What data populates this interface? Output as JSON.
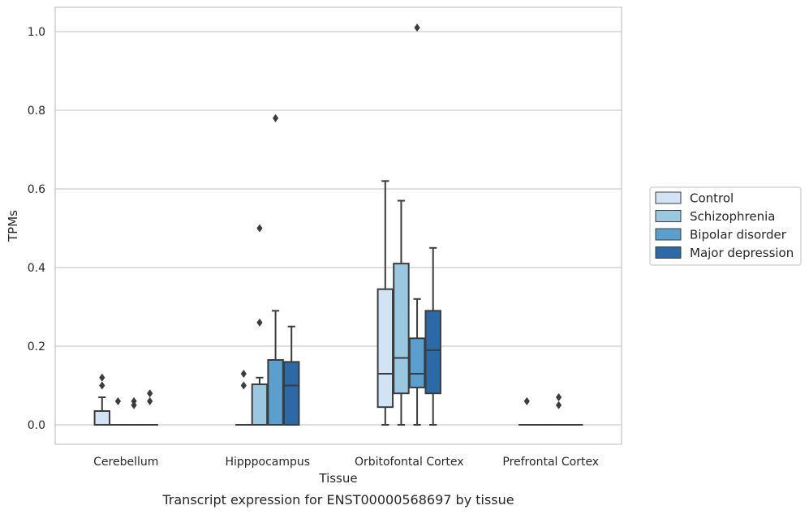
{
  "chart_data": {
    "type": "boxplot",
    "title": "",
    "caption": "Transcript expression for ENST00000568697 by tissue",
    "xlabel": "Tissue",
    "ylabel": "TPMs",
    "ylim": [
      -0.05,
      1.06
    ],
    "yticks": [
      0.0,
      0.2,
      0.4,
      0.6,
      0.8,
      1.0
    ],
    "yticklabels": [
      "0.0",
      "0.2",
      "0.4",
      "0.6",
      "0.8",
      "1.0"
    ],
    "grid": true,
    "legend": "right-outside",
    "categories": [
      "Cerebellum",
      "Hipppocampus",
      "Orbitofontal Cortex",
      "Prefrontal Cortex"
    ],
    "series": [
      {
        "name": "Control",
        "color": "#d2e3f3",
        "boxes": [
          {
            "whislo": 0.0,
            "q1": 0.0,
            "med": 0.0,
            "q3": 0.035,
            "whishi": 0.07,
            "fliers": [
              0.1,
              0.12
            ]
          },
          {
            "whislo": 0.0,
            "q1": 0.0,
            "med": 0.0,
            "q3": 0.0,
            "whishi": 0.0,
            "fliers": [
              0.1,
              0.13
            ]
          },
          {
            "whislo": 0.0,
            "q1": 0.045,
            "med": 0.13,
            "q3": 0.345,
            "whishi": 0.62,
            "fliers": []
          },
          {
            "whislo": 0.0,
            "q1": 0.0,
            "med": 0.0,
            "q3": 0.0,
            "whishi": 0.0,
            "fliers": [
              0.06
            ]
          }
        ]
      },
      {
        "name": "Schizophrenia",
        "color": "#9ac8e0",
        "boxes": [
          {
            "whislo": 0.0,
            "q1": 0.0,
            "med": 0.0,
            "q3": 0.0,
            "whishi": 0.0,
            "fliers": [
              0.06
            ]
          },
          {
            "whislo": 0.0,
            "q1": 0.0,
            "med": 0.0,
            "q3": 0.103,
            "whishi": 0.12,
            "fliers": [
              0.26,
              0.5
            ]
          },
          {
            "whislo": 0.0,
            "q1": 0.08,
            "med": 0.17,
            "q3": 0.41,
            "whishi": 0.57,
            "fliers": []
          },
          {
            "whislo": 0.0,
            "q1": 0.0,
            "med": 0.0,
            "q3": 0.0,
            "whishi": 0.0,
            "fliers": []
          }
        ]
      },
      {
        "name": "Bipolar disorder",
        "color": "#5a9fcd",
        "boxes": [
          {
            "whislo": 0.0,
            "q1": 0.0,
            "med": 0.0,
            "q3": 0.0,
            "whishi": 0.0,
            "fliers": [
              0.05,
              0.06
            ]
          },
          {
            "whislo": 0.0,
            "q1": 0.0,
            "med": 0.0,
            "q3": 0.165,
            "whishi": 0.29,
            "fliers": [
              0.78
            ]
          },
          {
            "whislo": 0.0,
            "q1": 0.095,
            "med": 0.13,
            "q3": 0.22,
            "whishi": 0.32,
            "fliers": [
              1.01
            ]
          },
          {
            "whislo": 0.0,
            "q1": 0.0,
            "med": 0.0,
            "q3": 0.0,
            "whishi": 0.0,
            "fliers": [
              0.05,
              0.07
            ]
          }
        ]
      },
      {
        "name": "Major depression",
        "color": "#2b6aa7",
        "boxes": [
          {
            "whislo": 0.0,
            "q1": 0.0,
            "med": 0.0,
            "q3": 0.0,
            "whishi": 0.0,
            "fliers": [
              0.06,
              0.08
            ]
          },
          {
            "whislo": 0.0,
            "q1": 0.0,
            "med": 0.1,
            "q3": 0.16,
            "whishi": 0.25,
            "fliers": []
          },
          {
            "whislo": 0.0,
            "q1": 0.08,
            "med": 0.19,
            "q3": 0.29,
            "whishi": 0.45,
            "fliers": []
          },
          {
            "whislo": 0.0,
            "q1": 0.0,
            "med": 0.0,
            "q3": 0.0,
            "whishi": 0.0,
            "fliers": []
          }
        ]
      }
    ]
  }
}
